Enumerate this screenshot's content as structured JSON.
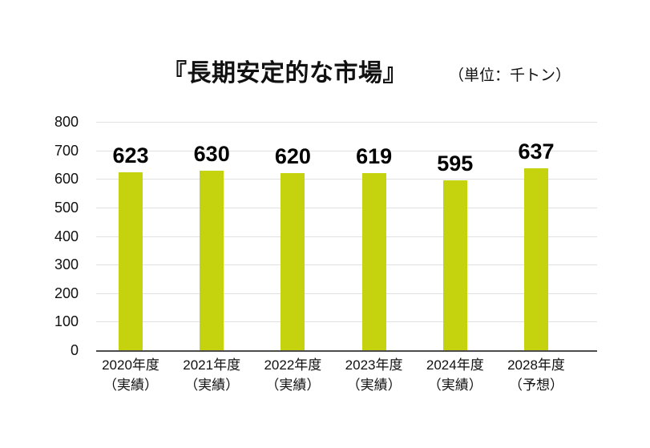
{
  "header": {
    "title": "『長期安定的な市場』",
    "unit_label": "（単位：千トン）"
  },
  "colors": {
    "bar": "#c5d20e",
    "gridline": "#e1e1e1",
    "axis": "#4c4c4c",
    "text": "#111111"
  },
  "chart_data": {
    "type": "bar",
    "title": "『長期安定的な市場』",
    "unit": "千トン",
    "categories": [
      "2020年度",
      "2021年度",
      "2022年度",
      "2023年度",
      "2024年度",
      "2028年度"
    ],
    "category_sublabels": [
      "（実績）",
      "（実績）",
      "（実績）",
      "（実績）",
      "（実績）",
      "（予想）"
    ],
    "values": [
      623,
      630,
      620,
      619,
      595,
      637
    ],
    "value_labels": [
      "623",
      "630",
      "620",
      "619",
      "595",
      "637"
    ],
    "ylim": [
      0,
      800
    ],
    "yticks": [
      0,
      100,
      200,
      300,
      400,
      500,
      600,
      700,
      800
    ],
    "grid": true,
    "legend": false,
    "bar_color": "#c5d20e",
    "xlabel": "",
    "ylabel": ""
  }
}
